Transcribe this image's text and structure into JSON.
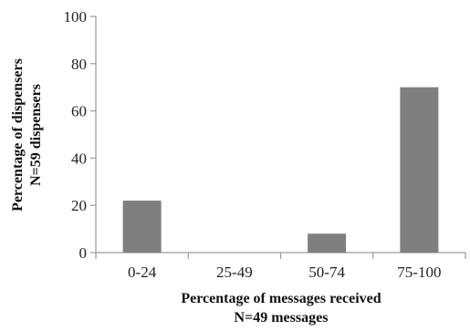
{
  "chart_data": {
    "type": "bar",
    "categories": [
      "0-24",
      "25-49",
      "50-74",
      "75-100"
    ],
    "values": [
      22,
      0,
      8,
      70
    ],
    "xlabel": [
      "Percentage of messages received",
      "N=49 messages"
    ],
    "ylabel": [
      "Percentage of dispensers",
      "N=59 dispensers"
    ],
    "ylim": [
      0,
      100
    ],
    "yticks": [
      "0",
      "20",
      "40",
      "60",
      "80",
      "100"
    ],
    "bar_color": "#7f7f7f",
    "grid": false,
    "legend": "none"
  }
}
